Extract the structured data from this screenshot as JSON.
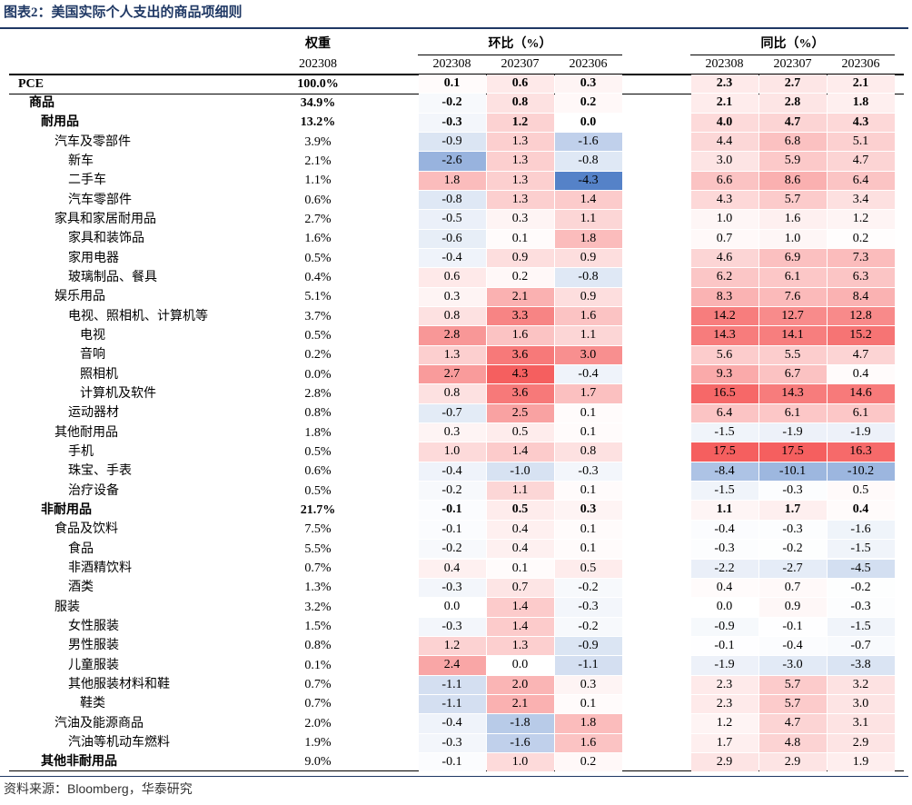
{
  "header": {
    "title": "图表2：美国实际个人支出的商品项细则"
  },
  "table": {
    "columns": {
      "weight": "权重",
      "weight_period": "202308",
      "mom": "环比（%）",
      "yoy": "同比（%）",
      "mom_periods": [
        "202308",
        "202307",
        "202306"
      ],
      "yoy_periods": [
        "202308",
        "202307",
        "202306"
      ]
    },
    "rows": [
      {
        "label": "PCE",
        "weight": "100.0%",
        "mom": [
          "0.1",
          "0.6",
          "0.3"
        ],
        "yoy": [
          "2.3",
          "2.7",
          "2.1"
        ],
        "children": [
          {
            "label": "商品",
            "weight": "34.9%",
            "mom": [
              "-0.2",
              "0.8",
              "0.2"
            ],
            "yoy": [
              "2.1",
              "2.8",
              "1.8"
            ],
            "children": [
              {
                "label": "耐用品",
                "weight": "13.2%",
                "mom": [
                  "-0.3",
                  "1.2",
                  "0.0"
                ],
                "yoy": [
                  "4.0",
                  "4.7",
                  "4.3"
                ],
                "children": [
                  {
                    "label": "汽车及零部件",
                    "weight": "3.9%",
                    "mom": [
                      "-0.9",
                      "1.3",
                      "-1.6"
                    ],
                    "yoy": [
                      "4.4",
                      "6.8",
                      "5.1"
                    ],
                    "children": [
                      {
                        "label": "新车",
                        "weight": "2.1%",
                        "mom": [
                          "-2.6",
                          "1.3",
                          "-0.8"
                        ],
                        "yoy": [
                          "3.0",
                          "5.9",
                          "4.7"
                        ]
                      },
                      {
                        "label": "二手车",
                        "weight": "1.1%",
                        "mom": [
                          "1.8",
                          "1.3",
                          "-4.3"
                        ],
                        "yoy": [
                          "6.6",
                          "8.6",
                          "6.4"
                        ]
                      },
                      {
                        "label": "汽车零部件",
                        "weight": "0.6%",
                        "mom": [
                          "-0.8",
                          "1.3",
                          "1.4"
                        ],
                        "yoy": [
                          "4.3",
                          "5.7",
                          "3.4"
                        ]
                      }
                    ]
                  },
                  {
                    "label": "家具和家居耐用品",
                    "weight": "2.7%",
                    "mom": [
                      "-0.5",
                      "0.3",
                      "1.1"
                    ],
                    "yoy": [
                      "1.0",
                      "1.6",
                      "1.2"
                    ],
                    "children": [
                      {
                        "label": "家具和装饰品",
                        "weight": "1.6%",
                        "mom": [
                          "-0.6",
                          "0.1",
                          "1.8"
                        ],
                        "yoy": [
                          "0.7",
                          "1.0",
                          "0.2"
                        ]
                      },
                      {
                        "label": "家用电器",
                        "weight": "0.5%",
                        "mom": [
                          "-0.4",
                          "0.9",
                          "0.9"
                        ],
                        "yoy": [
                          "4.6",
                          "6.9",
                          "7.3"
                        ]
                      },
                      {
                        "label": "玻璃制品、餐具",
                        "weight": "0.4%",
                        "mom": [
                          "0.6",
                          "0.2",
                          "-0.8"
                        ],
                        "yoy": [
                          "6.2",
                          "6.1",
                          "6.3"
                        ]
                      }
                    ]
                  },
                  {
                    "label": "娱乐用品",
                    "weight": "5.1%",
                    "mom": [
                      "0.3",
                      "2.1",
                      "0.9"
                    ],
                    "yoy": [
                      "8.3",
                      "7.6",
                      "8.4"
                    ],
                    "children": [
                      {
                        "label": "电视、照相机、计算机等",
                        "weight": "3.7%",
                        "mom": [
                          "0.8",
                          "3.3",
                          "1.6"
                        ],
                        "yoy": [
                          "14.2",
                          "12.7",
                          "12.8"
                        ],
                        "children": [
                          {
                            "label": "电视",
                            "weight": "0.5%",
                            "mom": [
                              "2.8",
                              "1.6",
                              "1.1"
                            ],
                            "yoy": [
                              "14.3",
                              "14.1",
                              "15.2"
                            ]
                          },
                          {
                            "label": "音响",
                            "weight": "0.2%",
                            "mom": [
                              "1.3",
                              "3.6",
                              "3.0"
                            ],
                            "yoy": [
                              "5.6",
                              "5.5",
                              "4.7"
                            ]
                          },
                          {
                            "label": "照相机",
                            "weight": "0.0%",
                            "mom": [
                              "2.7",
                              "4.3",
                              "-0.4"
                            ],
                            "yoy": [
                              "9.3",
                              "6.7",
                              "0.4"
                            ]
                          },
                          {
                            "label": "计算机及软件",
                            "weight": "2.8%",
                            "mom": [
                              "0.8",
                              "3.6",
                              "1.7"
                            ],
                            "yoy": [
                              "16.5",
                              "14.3",
                              "14.6"
                            ]
                          }
                        ]
                      },
                      {
                        "label": "运动器材",
                        "weight": "0.8%",
                        "mom": [
                          "-0.7",
                          "2.5",
                          "0.1"
                        ],
                        "yoy": [
                          "6.4",
                          "6.1",
                          "6.1"
                        ]
                      }
                    ]
                  },
                  {
                    "label": "其他耐用品",
                    "weight": "1.8%",
                    "mom": [
                      "0.3",
                      "0.5",
                      "0.1"
                    ],
                    "yoy": [
                      "-1.5",
                      "-1.9",
                      "-1.9"
                    ],
                    "children": [
                      {
                        "label": "手机",
                        "weight": "0.5%",
                        "mom": [
                          "1.0",
                          "1.4",
                          "0.8"
                        ],
                        "yoy": [
                          "17.5",
                          "17.5",
                          "16.3"
                        ]
                      },
                      {
                        "label": "珠宝、手表",
                        "weight": "0.6%",
                        "mom": [
                          "-0.4",
                          "-1.0",
                          "-0.3"
                        ],
                        "yoy": [
                          "-8.4",
                          "-10.1",
                          "-10.2"
                        ]
                      },
                      {
                        "label": "治疗设备",
                        "weight": "0.5%",
                        "mom": [
                          "-0.2",
                          "1.1",
                          "0.1"
                        ],
                        "yoy": [
                          "-1.5",
                          "-0.3",
                          "0.5"
                        ]
                      }
                    ]
                  }
                ]
              },
              {
                "label": "非耐用品",
                "weight": "21.7%",
                "mom": [
                  "-0.1",
                  "0.5",
                  "0.3"
                ],
                "yoy": [
                  "1.1",
                  "1.7",
                  "0.4"
                ],
                "children": [
                  {
                    "label": "食品及饮料",
                    "weight": "7.5%",
                    "mom": [
                      "-0.1",
                      "0.4",
                      "0.1"
                    ],
                    "yoy": [
                      "-0.4",
                      "-0.3",
                      "-1.6"
                    ],
                    "children": [
                      {
                        "label": "食品",
                        "weight": "5.5%",
                        "mom": [
                          "-0.2",
                          "0.4",
                          "0.1"
                        ],
                        "yoy": [
                          "-0.3",
                          "-0.2",
                          "-1.5"
                        ]
                      },
                      {
                        "label": "非酒精饮料",
                        "weight": "0.7%",
                        "mom": [
                          "0.4",
                          "0.1",
                          "0.5"
                        ],
                        "yoy": [
                          "-2.2",
                          "-2.7",
                          "-4.5"
                        ]
                      },
                      {
                        "label": "酒类",
                        "weight": "1.3%",
                        "mom": [
                          "-0.3",
                          "0.7",
                          "-0.2"
                        ],
                        "yoy": [
                          "0.4",
                          "0.7",
                          "-0.2"
                        ]
                      }
                    ]
                  },
                  {
                    "label": "服装",
                    "weight": "3.2%",
                    "mom": [
                      "0.0",
                      "1.4",
                      "-0.3"
                    ],
                    "yoy": [
                      "0.0",
                      "0.9",
                      "-0.3"
                    ],
                    "children": [
                      {
                        "label": "女性服装",
                        "weight": "1.5%",
                        "mom": [
                          "-0.3",
                          "1.4",
                          "-0.2"
                        ],
                        "yoy": [
                          "-0.9",
                          "-0.1",
                          "-1.5"
                        ]
                      },
                      {
                        "label": "男性服装",
                        "weight": "0.8%",
                        "mom": [
                          "1.2",
                          "1.3",
                          "-0.9"
                        ],
                        "yoy": [
                          "-0.1",
                          "-0.4",
                          "-0.7"
                        ]
                      },
                      {
                        "label": "儿童服装",
                        "weight": "0.1%",
                        "mom": [
                          "2.4",
                          "0.0",
                          "-1.1"
                        ],
                        "yoy": [
                          "-1.9",
                          "-3.0",
                          "-3.8"
                        ]
                      },
                      {
                        "label": "其他服装材料和鞋",
                        "weight": "0.7%",
                        "mom": [
                          "-1.1",
                          "2.0",
                          "0.3"
                        ],
                        "yoy": [
                          "2.3",
                          "5.7",
                          "3.2"
                        ],
                        "children": [
                          {
                            "label": "鞋类",
                            "weight": "0.7%",
                            "mom": [
                              "-1.1",
                              "2.1",
                              "0.1"
                            ],
                            "yoy": [
                              "2.3",
                              "5.7",
                              "3.0"
                            ]
                          }
                        ]
                      }
                    ]
                  },
                  {
                    "label": "汽油及能源商品",
                    "weight": "2.0%",
                    "mom": [
                      "-0.4",
                      "-1.8",
                      "1.8"
                    ],
                    "yoy": [
                      "1.2",
                      "4.7",
                      "3.1"
                    ],
                    "children": [
                      {
                        "label": "汽油等机动车燃料",
                        "weight": "1.9%",
                        "mom": [
                          "-0.3",
                          "-1.6",
                          "1.6"
                        ],
                        "yoy": [
                          "1.7",
                          "4.8",
                          "2.9"
                        ]
                      }
                    ]
                  }
                ]
              },
              {
                "label": "其他非耐用品",
                "weight": "9.0%",
                "mom": [
                  "-0.1",
                  "1.0",
                  "0.2"
                ],
                "yoy": [
                  "2.9",
                  "2.9",
                  "1.9"
                ]
              }
            ]
          }
        ]
      }
    ]
  },
  "footer": {
    "source": "资料来源：Bloomberg，华泰研究"
  }
}
